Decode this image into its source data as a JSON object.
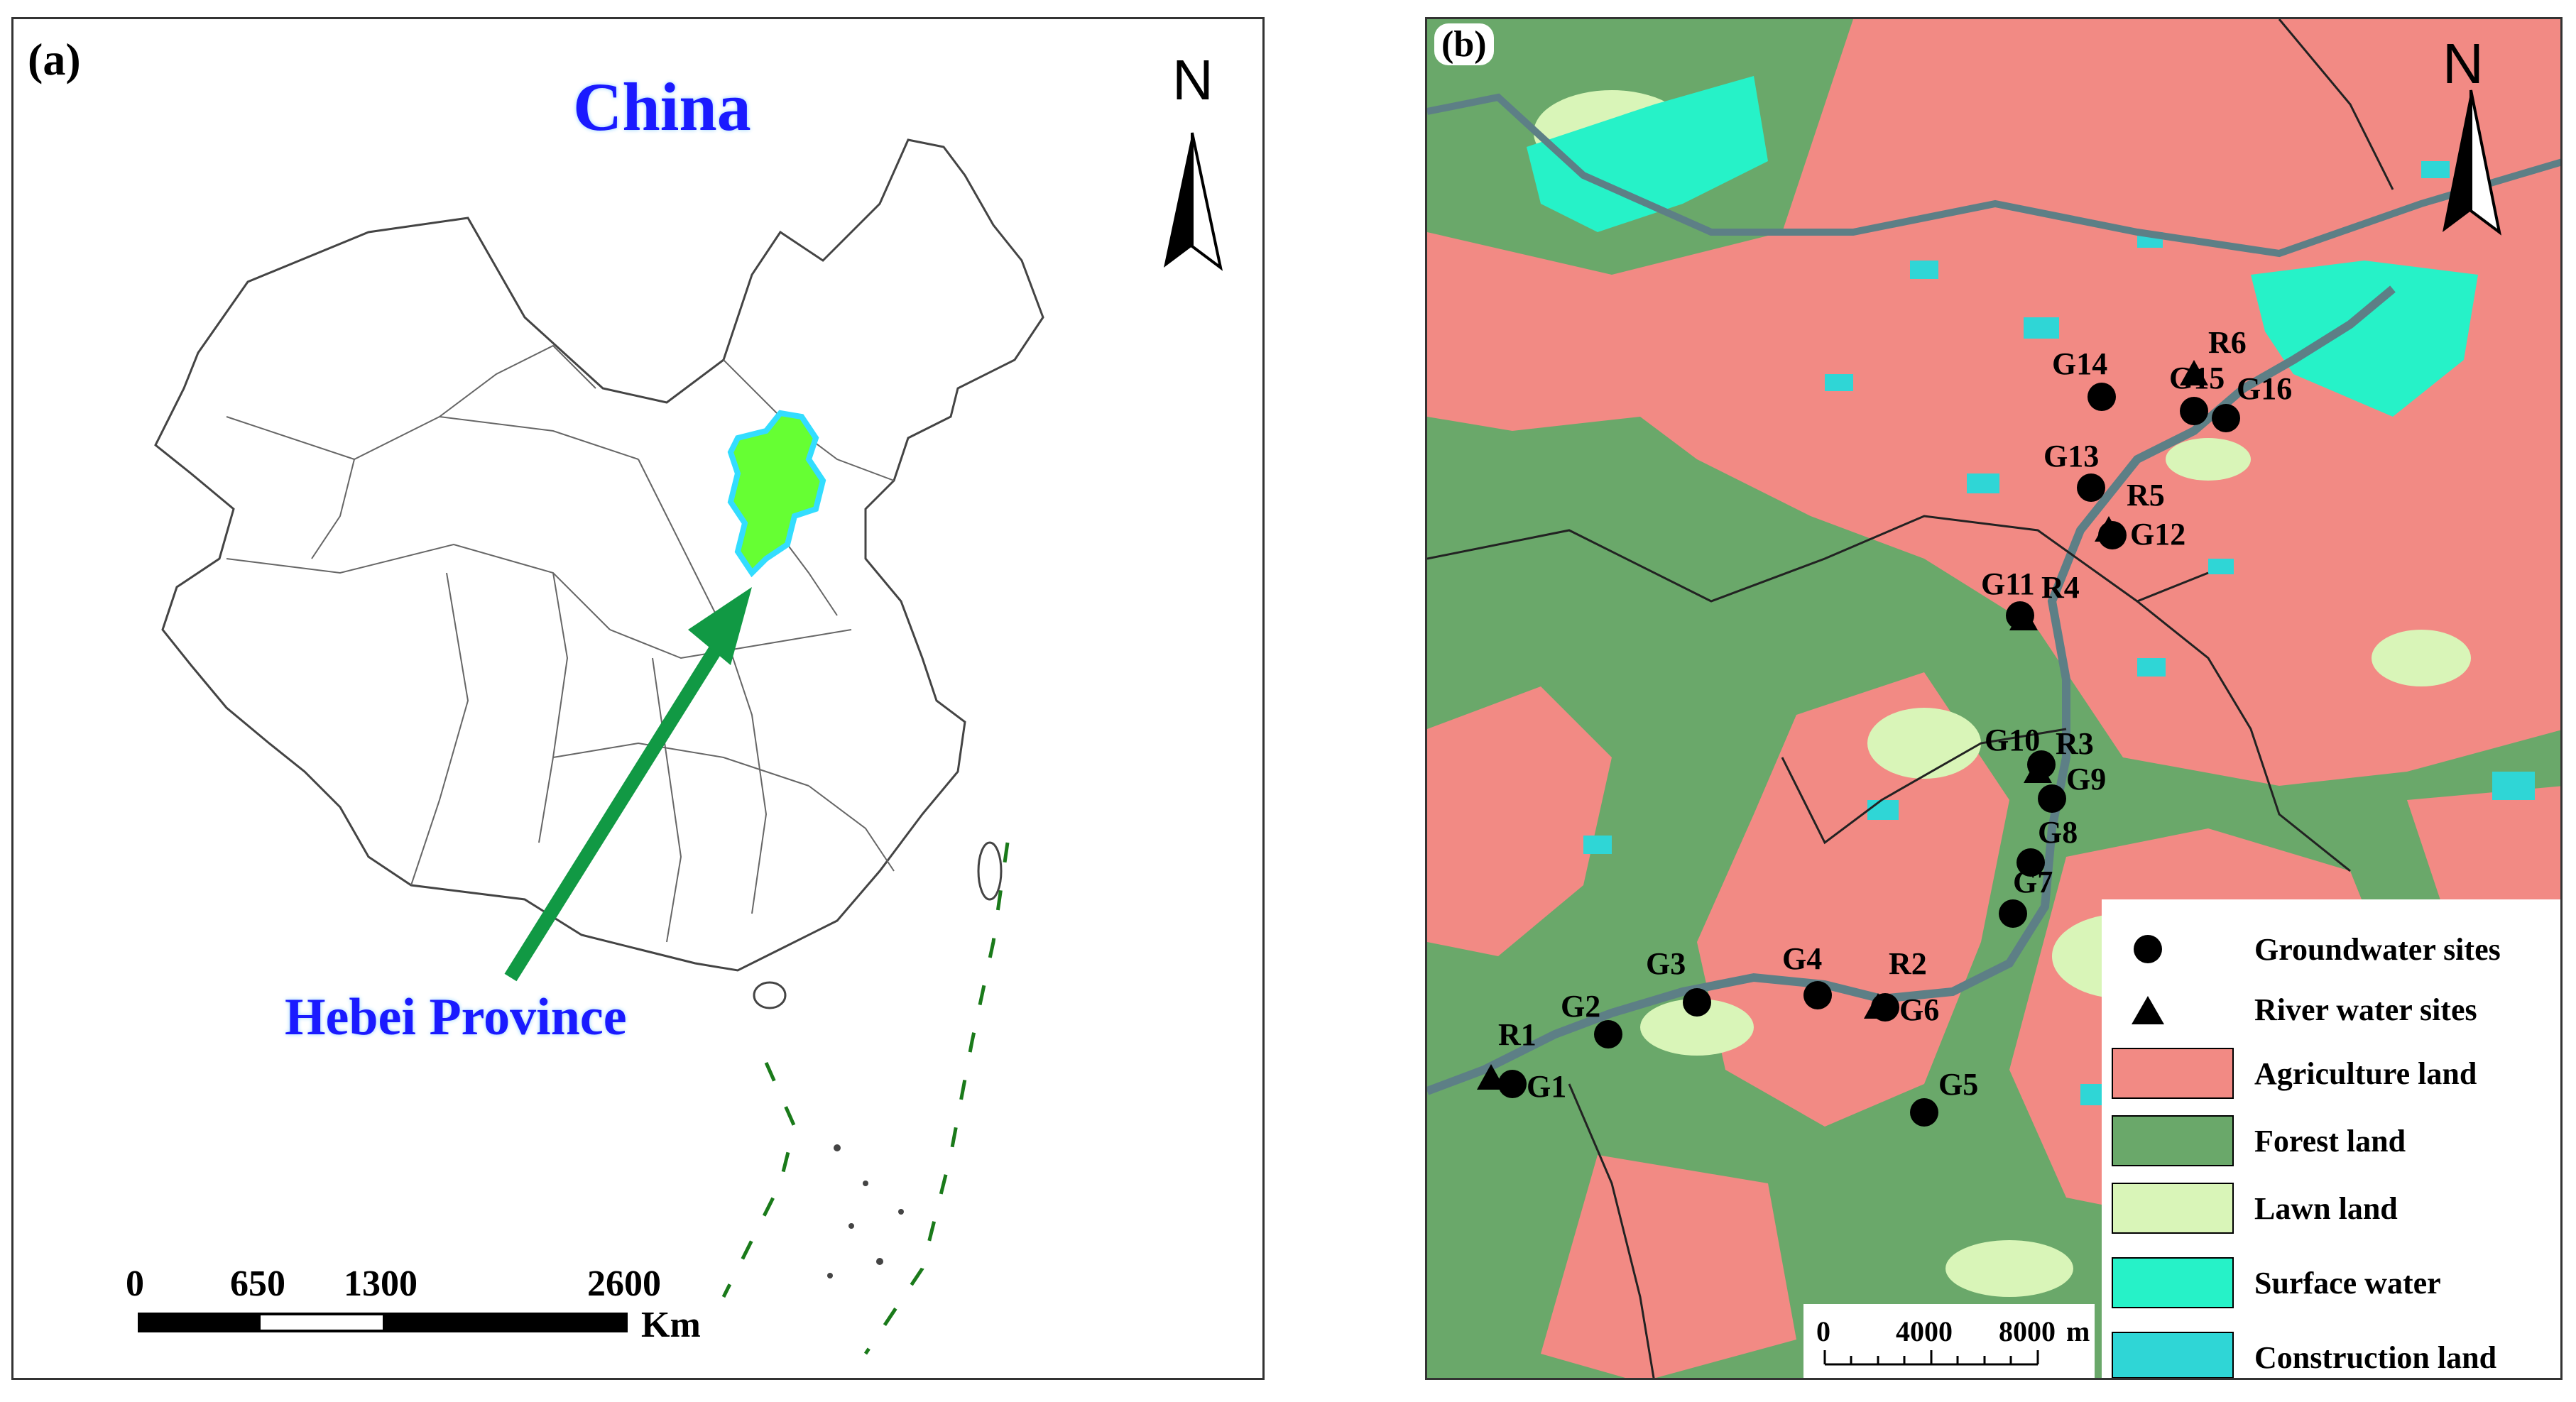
{
  "panel_a": {
    "label": "(a)",
    "title": "China",
    "highlight_label": "Hebei Province",
    "north": "N",
    "scale": {
      "ticks": [
        "0",
        "650",
        "1300",
        "2600"
      ],
      "unit": "Km"
    },
    "colors": {
      "title": "#1a1aff",
      "province_fill": "#66ff33",
      "province_outline": "#33ddff",
      "arrow": "#119944"
    }
  },
  "panel_b": {
    "label": "(b)",
    "north": "N",
    "scale": {
      "ticks": [
        "0",
        "4000",
        "8000"
      ],
      "unit": "m"
    },
    "groundwater_sites": [
      "G1",
      "G2",
      "G3",
      "G4",
      "G5",
      "G6",
      "G7",
      "G8",
      "G9",
      "G10",
      "G11",
      "G12",
      "G13",
      "G14",
      "G15",
      "G16"
    ],
    "river_sites": [
      "R1",
      "R2",
      "R3",
      "R4",
      "R5",
      "R6"
    ],
    "legend": [
      {
        "label": "Groundwater sites",
        "symbol": "circle"
      },
      {
        "label": "River water sites",
        "symbol": "triangle"
      },
      {
        "label": "Agriculture land",
        "color": "#f28a84"
      },
      {
        "label": "Forest land",
        "color": "#6aa86a"
      },
      {
        "label": "Lawn land",
        "color": "#d9f5b8"
      },
      {
        "label": "Surface water",
        "color": "#26f2c8"
      },
      {
        "label": "Construction land",
        "color": "#2fd6d6"
      }
    ]
  }
}
